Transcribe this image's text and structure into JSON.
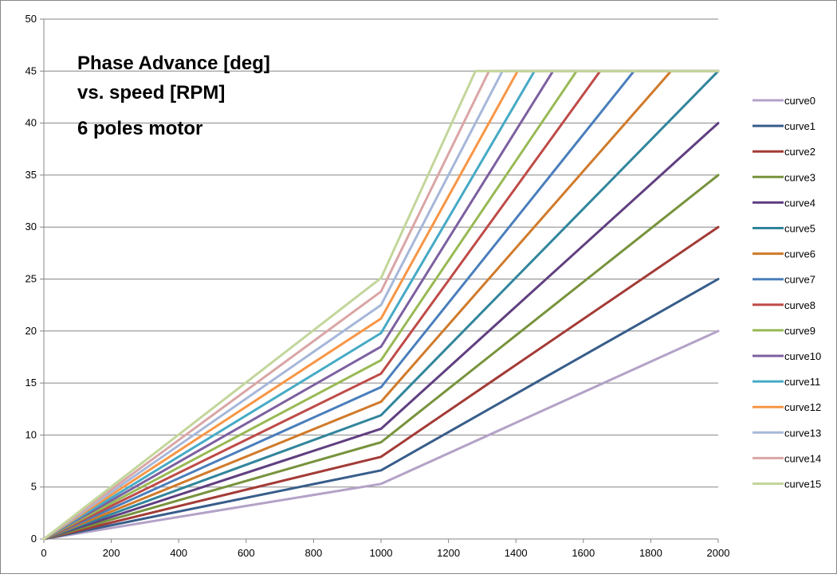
{
  "chart_data": {
    "type": "line",
    "title_lines": [
      "Phase Advance [deg]",
      "vs. speed [RPM]",
      "6 poles motor"
    ],
    "xlabel": "",
    "ylabel": "",
    "xlim": [
      0,
      2000
    ],
    "ylim": [
      0,
      50
    ],
    "xticks": [
      0,
      200,
      400,
      600,
      800,
      1000,
      1200,
      1400,
      1600,
      1800,
      2000
    ],
    "yticks": [
      0,
      5,
      10,
      15,
      20,
      25,
      30,
      35,
      40,
      45,
      50
    ],
    "grid": "horizontal",
    "legend_position": "right",
    "max_advance": 45,
    "series": [
      {
        "name": "curve0",
        "color": "#B3A2C7",
        "values": [
          [
            0,
            0
          ],
          [
            1000,
            5.3
          ],
          [
            2000,
            20
          ]
        ]
      },
      {
        "name": "curve1",
        "color": "#385D8A",
        "values": [
          [
            0,
            0
          ],
          [
            1000,
            6.6
          ],
          [
            2000,
            25
          ]
        ]
      },
      {
        "name": "curve2",
        "color": "#A33B36",
        "values": [
          [
            0,
            0
          ],
          [
            1000,
            7.9
          ],
          [
            2000,
            30
          ]
        ]
      },
      {
        "name": "curve3",
        "color": "#77933C",
        "values": [
          [
            0,
            0
          ],
          [
            1000,
            9.3
          ],
          [
            2000,
            35
          ]
        ]
      },
      {
        "name": "curve4",
        "color": "#603F80",
        "values": [
          [
            0,
            0
          ],
          [
            1000,
            10.6
          ],
          [
            2000,
            40
          ]
        ]
      },
      {
        "name": "curve5",
        "color": "#31859C",
        "values": [
          [
            0,
            0
          ],
          [
            1000,
            11.9
          ],
          [
            2000,
            45
          ]
        ]
      },
      {
        "name": "curve6",
        "color": "#D07A2A",
        "values": [
          [
            0,
            0
          ],
          [
            1000,
            13.2
          ],
          [
            1860,
            45
          ],
          [
            2000,
            45
          ]
        ]
      },
      {
        "name": "curve7",
        "color": "#4A7EBB",
        "values": [
          [
            0,
            0
          ],
          [
            1000,
            14.6
          ],
          [
            1750,
            45
          ],
          [
            2000,
            45
          ]
        ]
      },
      {
        "name": "curve8",
        "color": "#BE4B48",
        "values": [
          [
            0,
            0
          ],
          [
            1000,
            15.9
          ],
          [
            1650,
            45
          ],
          [
            2000,
            45
          ]
        ]
      },
      {
        "name": "curve9",
        "color": "#98B954",
        "values": [
          [
            0,
            0
          ],
          [
            1000,
            17.2
          ],
          [
            1580,
            45
          ],
          [
            2000,
            45
          ]
        ]
      },
      {
        "name": "curve10",
        "color": "#7D60A0",
        "values": [
          [
            0,
            0
          ],
          [
            1000,
            18.5
          ],
          [
            1510,
            45
          ],
          [
            2000,
            45
          ]
        ]
      },
      {
        "name": "curve11",
        "color": "#46AAC5",
        "values": [
          [
            0,
            0
          ],
          [
            1000,
            19.8
          ],
          [
            1455,
            45
          ],
          [
            2000,
            45
          ]
        ]
      },
      {
        "name": "curve12",
        "color": "#F79646",
        "values": [
          [
            0,
            0
          ],
          [
            1000,
            21.2
          ],
          [
            1405,
            45
          ],
          [
            2000,
            45
          ]
        ]
      },
      {
        "name": "curve13",
        "color": "#A6B7D9",
        "values": [
          [
            0,
            0
          ],
          [
            1000,
            22.5
          ],
          [
            1360,
            45
          ],
          [
            2000,
            45
          ]
        ]
      },
      {
        "name": "curve14",
        "color": "#D9A6A5",
        "values": [
          [
            0,
            0
          ],
          [
            1000,
            23.8
          ],
          [
            1320,
            45
          ],
          [
            2000,
            45
          ]
        ]
      },
      {
        "name": "curve15",
        "color": "#C3D69B",
        "values": [
          [
            0,
            0
          ],
          [
            1000,
            25.1
          ],
          [
            1280,
            45
          ],
          [
            2000,
            45
          ]
        ]
      }
    ]
  }
}
